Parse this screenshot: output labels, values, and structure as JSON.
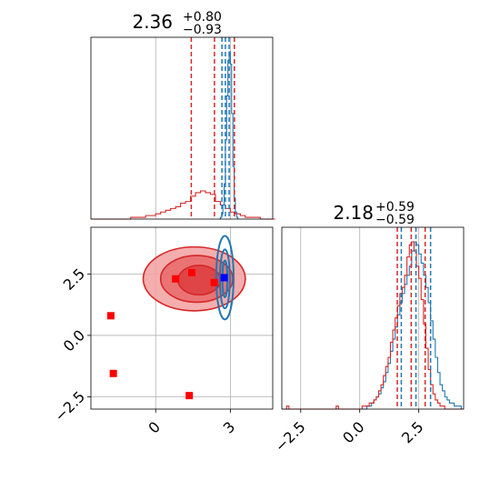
{
  "chart_data": {
    "type": "corner",
    "colors": {
      "red": "#d62728",
      "blue": "#1f77b4",
      "marker_red": "#ff0000",
      "marker_blue": "#0000ff",
      "grid": "#b0b0b0"
    },
    "grid": true,
    "parameters": [
      {
        "title_value": "2.36",
        "title_plus": "+0.80",
        "title_minus": "−0.93",
        "xlim": [
          -2.6,
          4.7
        ],
        "ticks": [
          0,
          3
        ],
        "tick_labels": [
          "0",
          "3"
        ],
        "red_quantiles": [
          1.43,
          2.36,
          3.16
        ],
        "blue_quantiles": [
          2.66,
          2.8,
          2.95
        ],
        "red_hist": {
          "x_start": -2.6,
          "bin_width": 0.2,
          "counts": [
            0,
            0,
            0,
            0,
            0,
            0,
            0,
            0,
            1,
            1,
            1,
            2,
            2,
            3,
            4,
            5,
            6,
            7,
            9,
            10,
            13,
            15,
            16,
            15,
            14,
            10,
            8,
            6,
            4,
            3,
            2,
            1,
            1,
            1,
            0,
            0,
            0
          ]
        },
        "blue_hist": {
          "x_start": 2.55,
          "bin_width": 0.05,
          "counts": [
            0,
            1,
            3,
            8,
            20,
            45,
            70,
            90,
            95,
            88,
            60,
            30,
            12,
            4,
            1
          ]
        }
      },
      {
        "title_value": "2.18",
        "title_plus": "+0.59",
        "title_minus": "−0.59",
        "xlim": [
          -3.3,
          4.4
        ],
        "ticks": [
          -2.5,
          0.0,
          2.5
        ],
        "tick_labels": [
          "−2.5",
          "0.0",
          "2.5"
        ],
        "red_quantiles": [
          1.59,
          2.18,
          2.77
        ],
        "blue_quantiles": [
          1.76,
          2.38,
          3.0
        ],
        "red_hist": {
          "x_start": -3.3,
          "bin_width": 0.1,
          "counts": [
            0,
            0,
            1,
            0,
            0,
            0,
            0,
            0,
            0,
            0,
            0,
            0,
            0,
            0,
            0,
            0,
            0,
            0,
            0,
            0,
            0,
            0,
            0,
            1,
            0,
            0,
            0,
            0,
            0,
            0,
            0,
            0,
            0,
            0,
            1,
            1,
            1,
            2,
            2,
            3,
            4,
            6,
            8,
            11,
            14,
            17,
            22,
            26,
            30,
            34,
            38,
            40,
            44,
            50,
            54,
            55,
            52,
            47,
            43,
            36,
            28,
            20,
            13,
            8,
            5,
            3,
            2,
            1,
            1,
            0,
            0,
            0,
            0,
            0,
            0,
            0,
            0
          ]
        },
        "blue_hist": {
          "x_start": -3.3,
          "bin_width": 0.1,
          "counts": [
            0,
            0,
            0,
            0,
            0,
            0,
            0,
            0,
            0,
            0,
            0,
            0,
            0,
            0,
            0,
            0,
            0,
            0,
            0,
            0,
            0,
            0,
            0,
            0,
            0,
            0,
            0,
            0,
            0,
            0,
            0,
            0,
            0,
            0,
            0,
            0,
            1,
            1,
            2,
            3,
            4,
            5,
            7,
            9,
            12,
            15,
            19,
            23,
            27,
            31,
            35,
            38,
            41,
            44,
            47,
            52,
            55,
            54,
            51,
            48,
            44,
            40,
            35,
            29,
            23,
            17,
            12,
            8,
            6,
            4,
            3,
            2,
            2,
            1,
            1,
            1,
            0
          ]
        }
      }
    ],
    "scatter_2d": {
      "ylim": [
        -3.0,
        4.4
      ],
      "yticks": [
        -2.5,
        0.0,
        2.5
      ],
      "ytick_labels": [
        "−2.5",
        "0.0",
        "2.5"
      ],
      "red_points": [
        {
          "x": 0.8,
          "y": 2.3
        },
        {
          "x": 1.45,
          "y": 2.55
        },
        {
          "x": 2.35,
          "y": 2.15
        },
        {
          "x": -1.8,
          "y": 0.8
        },
        {
          "x": -1.7,
          "y": -1.55
        },
        {
          "x": 1.35,
          "y": -2.45
        }
      ],
      "blue_points": [
        {
          "x": 2.75,
          "y": 2.35
        }
      ],
      "red_contour_levels": [
        {
          "cx": 1.55,
          "cy": 2.3,
          "rx": 2.05,
          "ry": 1.3
        },
        {
          "cx": 1.65,
          "cy": 2.3,
          "rx": 1.45,
          "ry": 0.95
        },
        {
          "cx": 1.75,
          "cy": 2.25,
          "rx": 0.85,
          "ry": 0.6
        }
      ],
      "blue_contour_levels": [
        {
          "cx": 2.78,
          "cy": 2.35,
          "rx": 0.35,
          "ry": 1.7
        },
        {
          "cx": 2.78,
          "cy": 2.3,
          "rx": 0.2,
          "ry": 1.2
        },
        {
          "cx": 2.78,
          "cy": 2.3,
          "rx": 0.1,
          "ry": 0.75
        }
      ]
    }
  }
}
